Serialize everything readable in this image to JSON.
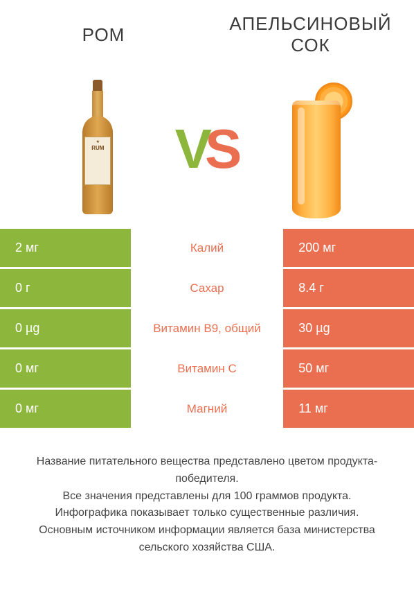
{
  "colors": {
    "left_primary": "#8cb63c",
    "right_primary": "#ea6f51",
    "vs_v": "#8cb63c",
    "vs_s": "#ea6f51",
    "text_dark": "#3a3a3a"
  },
  "header": {
    "left_title": "РОМ",
    "right_title": "АПЕЛЬСИНОВЫЙ СОК"
  },
  "bottle_label_top": "★",
  "bottle_label_main": "RUM",
  "nutrients": [
    {
      "name": "Калий",
      "left": "2 мг",
      "right": "200 мг",
      "winner": "right"
    },
    {
      "name": "Сахар",
      "left": "0 г",
      "right": "8.4 г",
      "winner": "right"
    },
    {
      "name": "Витамин B9, общий",
      "left": "0 µg",
      "right": "30 µg",
      "winner": "right"
    },
    {
      "name": "Витамин C",
      "left": "0 мг",
      "right": "50 мг",
      "winner": "right"
    },
    {
      "name": "Магний",
      "left": "0 мг",
      "right": "11 мг",
      "winner": "right"
    }
  ],
  "footer_lines": [
    "Название питательного вещества представлено цветом продукта-победителя.",
    "Все значения представлены для 100 граммов продукта.",
    "Инфографика показывает только существенные различия.",
    "Основным источником информации является база министерства сельского хозяйства США."
  ]
}
